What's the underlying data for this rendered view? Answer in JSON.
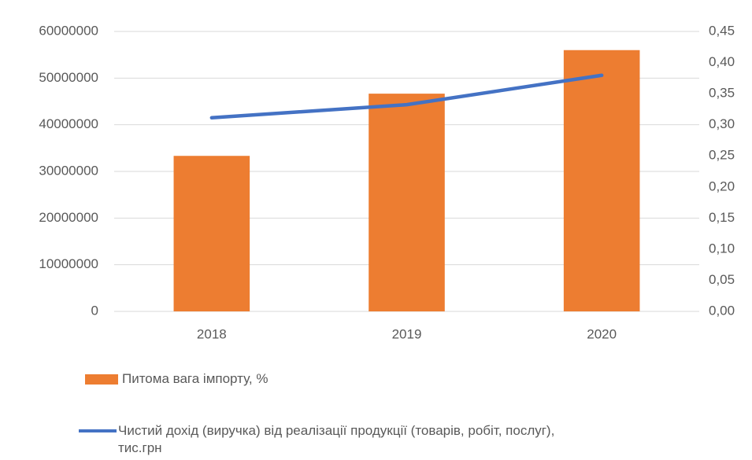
{
  "chart_data": {
    "type": "bar-line",
    "categories": [
      "2018",
      "2019",
      "2020"
    ],
    "series": [
      {
        "name": "Питома вага імпорту, %",
        "type": "bar",
        "axis": "y2",
        "color": "#ed7d31",
        "values": [
          0.25,
          0.35,
          0.42
        ]
      },
      {
        "name": "Чистий дохід  (виручка) від реалізації продукції (товарів, робіт, послуг), тис.грн",
        "type": "line",
        "axis": "y",
        "color": "#4472c4",
        "values": [
          41500000,
          44300000,
          50600000
        ]
      }
    ],
    "ylim": [
      0,
      60000000
    ],
    "yticks": [
      0,
      10000000,
      20000000,
      30000000,
      40000000,
      50000000,
      60000000
    ],
    "y2lim": [
      0,
      0.45
    ],
    "y2ticks": [
      {
        "value": 0,
        "label": "0,00"
      },
      {
        "value": 0.05,
        "label": "0,05"
      },
      {
        "value": 0.1,
        "label": "0,10"
      },
      {
        "value": 0.15,
        "label": "0,15"
      },
      {
        "value": 0.2,
        "label": "0,20"
      },
      {
        "value": 0.25,
        "label": "0,25"
      },
      {
        "value": 0.3,
        "label": "0,30"
      },
      {
        "value": 0.35,
        "label": "0,35"
      },
      {
        "value": 0.4,
        "label": "0,40"
      },
      {
        "value": 0.45,
        "label": "0,45"
      }
    ],
    "grid": true
  }
}
